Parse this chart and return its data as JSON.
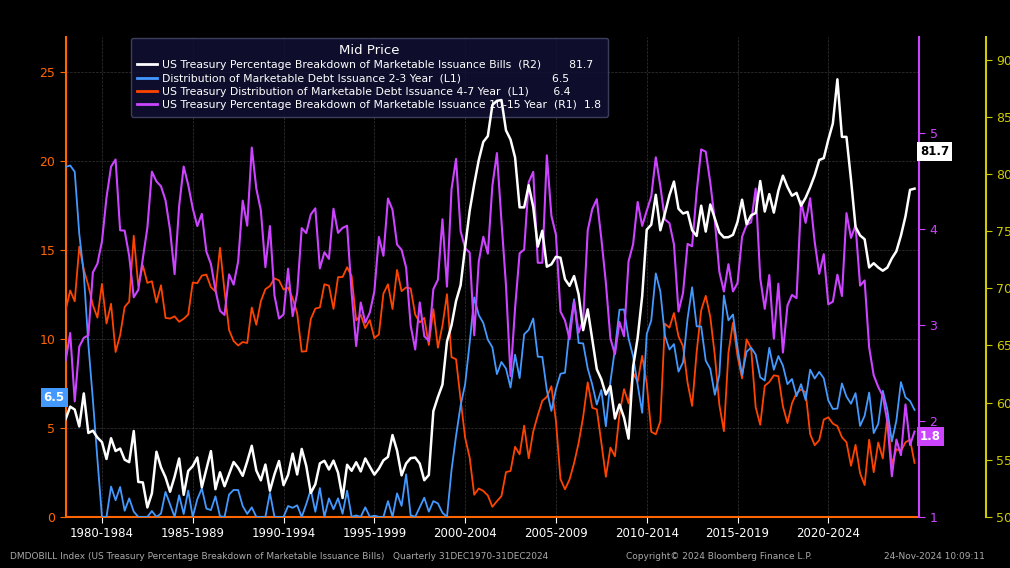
{
  "title": "Mid Price",
  "background_color": "#000000",
  "series": [
    {
      "name": "US Treasury Percentage Breakdown of Marketable Issuance Bills  (R2)",
      "color": "#ffffff",
      "last_value": "81.7"
    },
    {
      "name": "Distribution of Marketable Debt Issuance 2-3 Year  (L1)",
      "color": "#4499ff",
      "last_value": "6.5"
    },
    {
      "name": "US Treasury Distribution of Marketable Debt Issuance 4-7 Year  (L1)",
      "color": "#ff4400",
      "last_value": "6.4"
    },
    {
      "name": "US Treasury Percentage Breakdown of Marketable Issuance 10-15 Year  (R1)",
      "color": "#cc44ff",
      "last_value": "1.8"
    }
  ],
  "left_axis": {
    "ylim": [
      0,
      27
    ],
    "ticks": [
      0,
      5,
      10,
      15,
      20,
      25
    ],
    "color": "#ff6600"
  },
  "right1_axis": {
    "ylim": [
      1.0,
      6.0
    ],
    "ticks": [
      1.0,
      2.0,
      3.0,
      4.0,
      5.0
    ],
    "color": "#cc44ff"
  },
  "right2_axis": {
    "ylim": [
      50,
      92
    ],
    "ticks": [
      50,
      55,
      60,
      65,
      70,
      75,
      80,
      85,
      90
    ],
    "color": "#cccc00"
  },
  "xticklabels": [
    "1980-1984",
    "1985-1989",
    "1990-1994",
    "1995-1999",
    "2000-2004",
    "2005-2009",
    "2010-2014",
    "2015-2019",
    "2020-2024"
  ],
  "xtick_positions": [
    1980,
    1985,
    1990,
    1995,
    2000,
    2005,
    2010,
    2015,
    2020
  ],
  "xlim": [
    1978,
    2025
  ],
  "footer_left": "DMDOBILL Index (US Treasury Percentage Breakdown of Marketable Issuance Bills)   Quarterly 31DEC1970-31DEC2024",
  "footer_center": "Copyright© 2024 Bloomberg Finance L.P.",
  "footer_right": "24-Nov-2024 10:09:11"
}
